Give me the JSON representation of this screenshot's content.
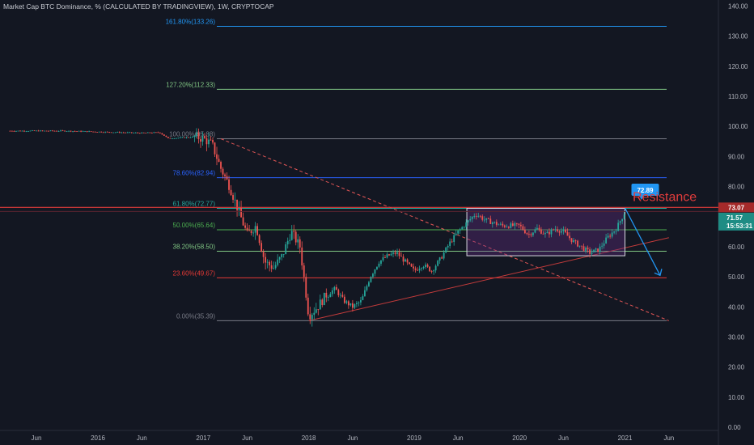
{
  "header": {
    "title": "Market Cap BTC Dominance, % (CALCULATED BY TRADINGVIEW), 1W, CRYPTOCAP"
  },
  "colors": {
    "background": "#131722",
    "up": "#26a69a",
    "down": "#ef5350",
    "fib_100": "#787b86",
    "fib_78": "#2962ff",
    "fib_61": "#26a69a",
    "fib_50": "#4caf50",
    "fib_38": "#81c784",
    "fib_23": "#e53935",
    "fib_0": "#787b86",
    "fib_127": "#81c784",
    "fib_161": "#2196f3",
    "resistance": "#e03c3c",
    "box_fill": "#6a2f8a",
    "arrow": "#2196f3"
  },
  "annotations": {
    "resistance_label": "Resistance",
    "target_badge": "72.89",
    "resistance_level": 73.07
  },
  "price_scale": {
    "last_price_badge": "73.07",
    "current_badge": "71.57",
    "countdown_badge": "15:53:31"
  },
  "chart_data": {
    "type": "candlestick",
    "title": "Market Cap BTC Dominance, % (CALCULATED BY TRADINGVIEW), 1W, CRYPTOCAP",
    "ylim": [
      0,
      140
    ],
    "y_ticks": [
      "140.00",
      "130.00",
      "120.00",
      "110.00",
      "100.00",
      "90.00",
      "80.00",
      "70.00",
      "60.00",
      "50.00",
      "40.00",
      "30.00",
      "20.00",
      "10.00",
      "0.00"
    ],
    "x_ticks": [
      {
        "label": "Jun",
        "date": "2015-06"
      },
      {
        "label": "2016",
        "date": "2016-01"
      },
      {
        "label": "Jun",
        "date": "2016-06"
      },
      {
        "label": "2017",
        "date": "2017-01"
      },
      {
        "label": "Jun",
        "date": "2017-06"
      },
      {
        "label": "2018",
        "date": "2018-01"
      },
      {
        "label": "Jun",
        "date": "2018-06"
      },
      {
        "label": "2019",
        "date": "2019-01"
      },
      {
        "label": "Jun",
        "date": "2019-06"
      },
      {
        "label": "2020",
        "date": "2020-01"
      },
      {
        "label": "Jun",
        "date": "2020-06"
      },
      {
        "label": "2021",
        "date": "2021-01"
      },
      {
        "label": "Jun",
        "date": "2021-06"
      }
    ],
    "fib_levels": [
      {
        "label": "161.80%(133.26)",
        "value": 133.26,
        "color": "#2196f3"
      },
      {
        "label": "127.20%(112.33)",
        "value": 112.33,
        "color": "#81c784"
      },
      {
        "label": "100.00%(95.88)",
        "value": 95.88,
        "color": "#787b86"
      },
      {
        "label": "78.60%(82.94)",
        "value": 82.94,
        "color": "#2962ff"
      },
      {
        "label": "61.80%(72.77)",
        "value": 72.77,
        "color": "#26a69a"
      },
      {
        "label": "50.00%(65.64)",
        "value": 65.64,
        "color": "#4caf50"
      },
      {
        "label": "38.20%(58.50)",
        "value": 58.5,
        "color": "#81c784"
      },
      {
        "label": "23.60%(49.67)",
        "value": 49.67,
        "color": "#e53935"
      },
      {
        "label": "0.00%(35.39)",
        "value": 35.39,
        "color": "#787b86"
      }
    ],
    "price_path": [
      [
        "2015-03",
        98.5
      ],
      [
        "2015-09",
        98.5
      ],
      [
        "2016-01",
        98.2
      ],
      [
        "2016-06",
        97.8
      ],
      [
        "2016-08",
        98.0
      ],
      [
        "2016-09",
        96.0
      ],
      [
        "2016-12",
        96.5
      ],
      [
        "2017-01",
        96.0
      ],
      [
        "2017-02",
        94.0
      ],
      [
        "2017-03",
        86.0
      ],
      [
        "2017-04",
        80.0
      ],
      [
        "2017-05",
        72.0
      ],
      [
        "2017-06",
        64.0
      ],
      [
        "2017-07",
        67.0
      ],
      [
        "2017-08",
        55.0
      ],
      [
        "2017-09",
        53.0
      ],
      [
        "2017-10",
        57.0
      ],
      [
        "2017-11",
        65.0
      ],
      [
        "2017-12",
        60.0
      ],
      [
        "2017-12-20",
        46.0
      ],
      [
        "2018-01",
        37.0
      ],
      [
        "2018-02",
        40.0
      ],
      [
        "2018-03",
        44.0
      ],
      [
        "2018-04",
        46.0
      ],
      [
        "2018-05",
        42.0
      ],
      [
        "2018-06",
        40.0
      ],
      [
        "2018-07",
        42.0
      ],
      [
        "2018-08",
        50.0
      ],
      [
        "2018-09",
        55.0
      ],
      [
        "2018-10",
        57.0
      ],
      [
        "2018-11",
        58.0
      ],
      [
        "2018-12",
        55.0
      ],
      [
        "2019-01",
        52.0
      ],
      [
        "2019-02",
        54.0
      ],
      [
        "2019-03",
        52.0
      ],
      [
        "2019-04",
        56.0
      ],
      [
        "2019-05",
        61.0
      ],
      [
        "2019-06",
        65.0
      ],
      [
        "2019-07",
        68.0
      ],
      [
        "2019-08",
        71.0
      ],
      [
        "2019-09",
        69.0
      ],
      [
        "2019-10",
        68.0
      ],
      [
        "2019-11",
        67.0
      ],
      [
        "2019-12",
        67.0
      ],
      [
        "2020-01",
        67.0
      ],
      [
        "2020-02",
        64.0
      ],
      [
        "2020-03",
        66.0
      ],
      [
        "2020-04",
        64.0
      ],
      [
        "2020-05",
        66.0
      ],
      [
        "2020-06",
        65.0
      ],
      [
        "2020-07",
        62.0
      ],
      [
        "2020-08",
        60.0
      ],
      [
        "2020-09",
        58.0
      ],
      [
        "2020-10",
        59.0
      ],
      [
        "2020-11",
        63.0
      ],
      [
        "2020-12",
        66.0
      ],
      [
        "2021-01",
        71.57
      ]
    ],
    "trendlines": [
      {
        "name": "",
        "style": "dashed",
        "color": "#e05555",
        "from": [
          "2017-03",
          95.88
        ],
        "to": [
          "2021-06",
          35.39
        ]
      },
      {
        "name": "",
        "style": "solid",
        "color": "#c23b3b",
        "from": [
          "2018-01",
          35.39
        ],
        "to": [
          "2021-06",
          63.0
        ]
      }
    ],
    "range_box": {
      "from": "2019-07",
      "to": "2021-01",
      "top": 72.77,
      "bottom": 57.0
    },
    "projection": {
      "from": [
        "2021-01",
        72.89
      ],
      "to": [
        "2021-05",
        49.67
      ]
    },
    "grid": false,
    "legend": "none"
  }
}
